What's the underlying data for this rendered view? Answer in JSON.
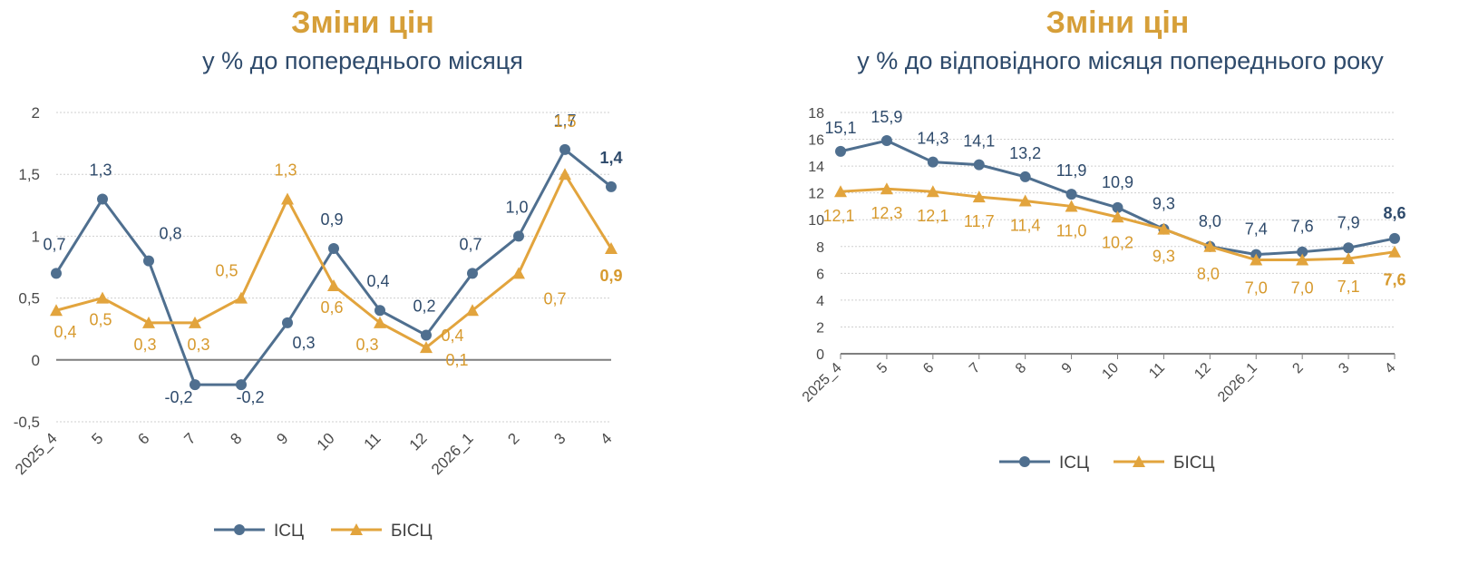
{
  "colors": {
    "isc": "#4F6F8F",
    "bisc": "#E2A43D",
    "isc_label": "#2E4A6B",
    "bisc_label": "#D79A2E",
    "title": "#D69F39",
    "subtitle": "#2E4A6B"
  },
  "chart_data": [
    {
      "type": "line",
      "title": "Зміни цін",
      "subtitle": "у % до попереднього місяця",
      "categories": [
        "2025_4",
        "5",
        "6",
        "7",
        "8",
        "9",
        "10",
        "11",
        "12",
        "2026_1",
        "2",
        "3",
        "4"
      ],
      "yticks": [
        "-0,5",
        "0",
        "0,5",
        "1",
        "1,5",
        "2"
      ],
      "ylim": [
        -0.5,
        2
      ],
      "grid": true,
      "legend_position": "bottom",
      "series": [
        {
          "name": "ІСЦ",
          "marker": "circle",
          "values": [
            0.7,
            1.3,
            0.8,
            -0.2,
            -0.2,
            0.3,
            0.9,
            0.4,
            0.2,
            0.7,
            1.0,
            1.7,
            1.4
          ],
          "labels": [
            "0,7",
            "1,3",
            "0,8",
            "-0,2",
            "-0,2",
            "0,3",
            "0,9",
            "0,4",
            "0,2",
            "0,7",
            "1,0",
            "1,7",
            "1,4"
          ]
        },
        {
          "name": "БІСЦ",
          "marker": "triangle",
          "values": [
            0.4,
            0.5,
            0.3,
            0.3,
            0.5,
            1.3,
            0.6,
            0.3,
            0.1,
            0.4,
            0.7,
            1.5,
            0.9
          ],
          "labels": [
            "0,4",
            "0,5",
            "0,3",
            "0,3",
            "0,5",
            "1,3",
            "0,6",
            "0,3",
            "0,1",
            "0,4",
            "0,7",
            "1,5",
            "0,9"
          ]
        }
      ]
    },
    {
      "type": "line",
      "title": "Зміни цін",
      "subtitle": "у % до відповідного місяця попереднього року",
      "categories": [
        "2025_4",
        "5",
        "6",
        "7",
        "8",
        "9",
        "10",
        "11",
        "12",
        "2026_1",
        "2",
        "3",
        "4"
      ],
      "yticks": [
        "0",
        "2",
        "4",
        "6",
        "8",
        "10",
        "12",
        "14",
        "16",
        "18"
      ],
      "ylim": [
        0,
        18
      ],
      "grid": true,
      "legend_position": "bottom",
      "series": [
        {
          "name": "ІСЦ",
          "marker": "circle",
          "values": [
            15.1,
            15.9,
            14.3,
            14.1,
            13.2,
            11.9,
            10.9,
            9.3,
            8.0,
            7.4,
            7.6,
            7.9,
            8.6
          ],
          "labels": [
            "15,1",
            "15,9",
            "14,3",
            "14,1",
            "13,2",
            "11,9",
            "10,9",
            "9,3",
            "8,0",
            "7,4",
            "7,6",
            "7,9",
            "8,6"
          ]
        },
        {
          "name": "БІСЦ",
          "marker": "triangle",
          "values": [
            12.1,
            12.3,
            12.1,
            11.7,
            11.4,
            11.0,
            10.2,
            9.3,
            8.0,
            7.0,
            7.0,
            7.1,
            7.6
          ],
          "labels": [
            "12,1",
            "12,3",
            "12,1",
            "11,7",
            "11,4",
            "11,0",
            "10,2",
            "9,3",
            "8,0",
            "7,0",
            "7,0",
            "7,1",
            "7,6"
          ]
        }
      ]
    }
  ]
}
